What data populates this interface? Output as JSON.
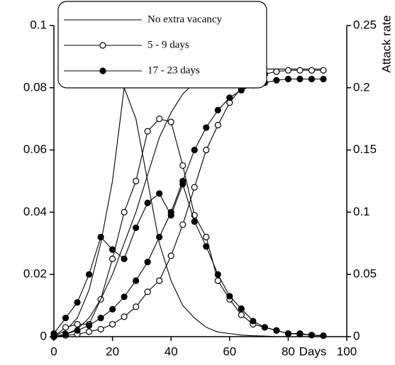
{
  "chart_data": {
    "type": "line",
    "xlabel": "Days",
    "y2label": "Attack rate",
    "x": [
      0,
      4,
      8,
      12,
      16,
      20,
      24,
      28,
      32,
      36,
      40,
      44,
      48,
      52,
      56,
      60,
      64,
      68,
      72,
      76,
      80,
      84,
      88,
      92
    ],
    "xlim": [
      0,
      100
    ],
    "xticks": [
      0,
      20,
      40,
      60,
      80,
      100
    ],
    "ylim": [
      0,
      0.1
    ],
    "yticks": [
      0,
      0.02,
      0.04,
      0.06,
      0.08,
      0.1
    ],
    "y2lim": [
      0,
      0.25
    ],
    "y2ticks": [
      0,
      0.05,
      0.1,
      0.15,
      0.2,
      0.25
    ],
    "legend": "upper left",
    "series": [
      {
        "name": "No extra vacancy",
        "marker": "none",
        "color": "#000000",
        "values": [
          0,
          0.002,
          0.006,
          0.015,
          0.03,
          0.05,
          0.08,
          0.07,
          0.05,
          0.03,
          0.018,
          0.01,
          0.006,
          0.003,
          0.0015,
          0.001,
          0.0005,
          0.0003,
          0.0002,
          0,
          0,
          0,
          0,
          0
        ]
      },
      {
        "name": "5 - 9 days",
        "marker": "open",
        "color": "#000000",
        "values": [
          0,
          0.003,
          0.004,
          0.004,
          0.012,
          0.025,
          0.04,
          0.05,
          0.066,
          0.07,
          0.069,
          0.055,
          0.039,
          0.032,
          0.018,
          0.012,
          0.007,
          0.004,
          0.003,
          0.002,
          0.001,
          0.001,
          0.0005,
          0.0003
        ]
      },
      {
        "name": "17 - 23 days",
        "marker": "filled",
        "color": "#000000",
        "values": [
          0.001,
          0.006,
          0.011,
          0.02,
          0.032,
          0.028,
          0.025,
          0.035,
          0.043,
          0.046,
          0.039,
          0.049,
          0.037,
          0.029,
          0.02,
          0.013,
          0.009,
          0.005,
          0.003,
          0.002,
          0.001,
          0.0008,
          0.0005,
          0.0003
        ]
      },
      {
        "axis": "y2",
        "marker": "none",
        "color": "#000000",
        "values": [
          0,
          0.002,
          0.006,
          0.015,
          0.03,
          0.05,
          0.075,
          0.1,
          0.13,
          0.16,
          0.18,
          0.195,
          0.204,
          0.209,
          0.212,
          0.213,
          0.214,
          0.2145,
          0.215,
          0.215,
          0.215,
          0.215,
          0.215,
          0.215
        ]
      },
      {
        "axis": "y2",
        "marker": "open",
        "color": "#000000",
        "values": [
          0,
          0.001,
          0.002,
          0.004,
          0.006,
          0.01,
          0.016,
          0.024,
          0.036,
          0.045,
          0.065,
          0.09,
          0.12,
          0.15,
          0.17,
          0.188,
          0.2,
          0.207,
          0.211,
          0.213,
          0.214,
          0.214,
          0.214,
          0.214
        ]
      },
      {
        "axis": "y2",
        "marker": "filled",
        "color": "#000000",
        "values": [
          0,
          0.002,
          0.005,
          0.009,
          0.015,
          0.022,
          0.032,
          0.045,
          0.06,
          0.08,
          0.1,
          0.125,
          0.15,
          0.168,
          0.182,
          0.192,
          0.198,
          0.202,
          0.204,
          0.206,
          0.207,
          0.207,
          0.207,
          0.207
        ]
      }
    ]
  }
}
